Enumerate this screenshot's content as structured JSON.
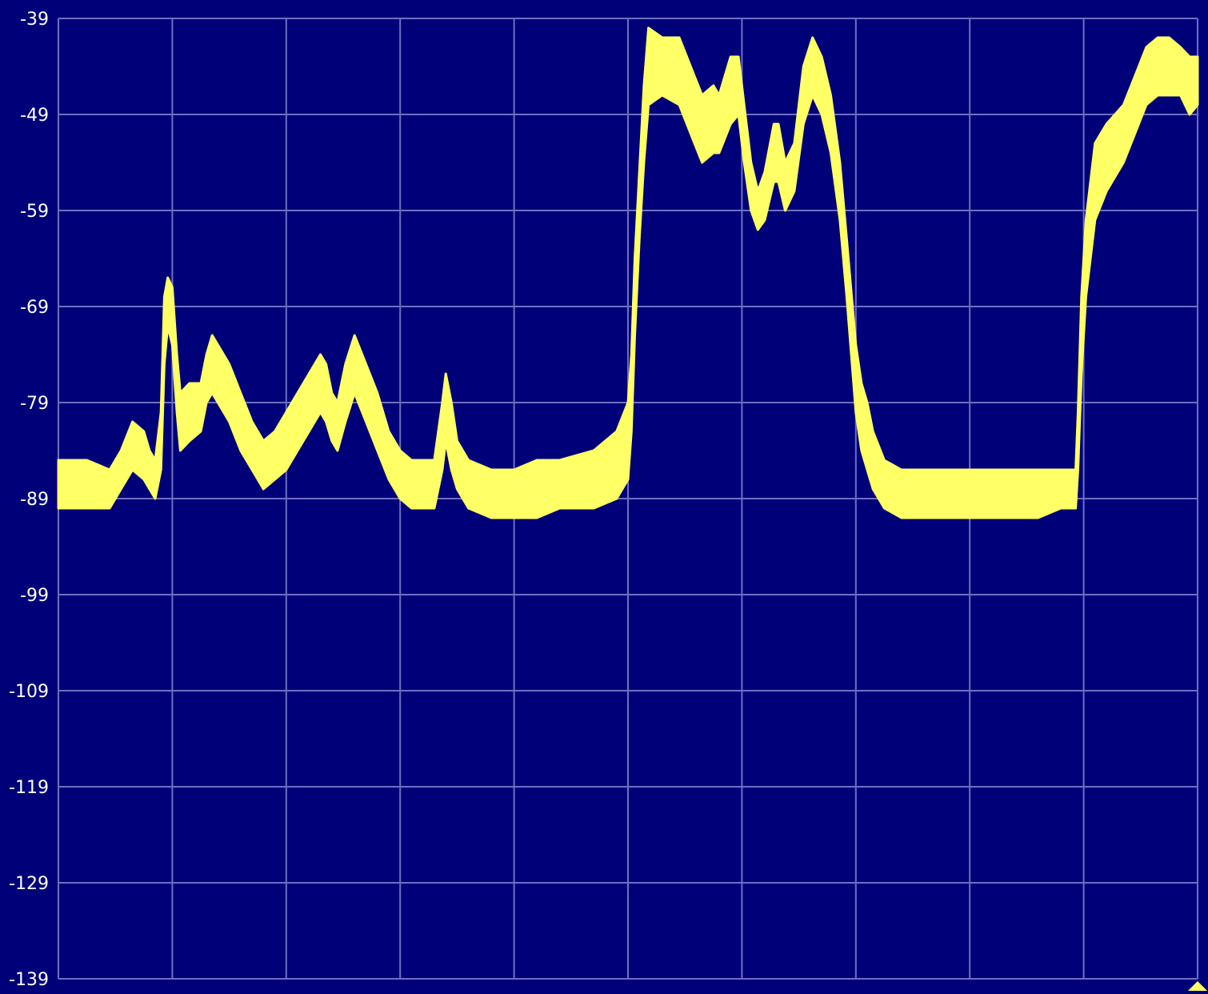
{
  "colors": {
    "background": "#000078",
    "grid": "#6f6fc4",
    "trace": "#ffff66",
    "label": "#ffffff"
  },
  "chart_data": {
    "type": "area",
    "title": "",
    "xlabel": "",
    "ylabel": "",
    "ylim": [
      -139,
      -39
    ],
    "yticks": [
      -39,
      -49,
      -59,
      -69,
      -79,
      -89,
      -99,
      -109,
      -119,
      -129,
      -139
    ],
    "x_divisions": 10,
    "xlim": [
      0,
      1
    ],
    "grid": true,
    "marker": "bottom-right-triangle",
    "series": [
      {
        "upper": [
          [
            0.0,
            -85
          ],
          [
            0.025,
            -85
          ],
          [
            0.045,
            -86
          ],
          [
            0.055,
            -84
          ],
          [
            0.065,
            -81
          ],
          [
            0.075,
            -82
          ],
          [
            0.08,
            -84
          ],
          [
            0.085,
            -85
          ],
          [
            0.09,
            -80
          ],
          [
            0.093,
            -68
          ],
          [
            0.096,
            -66
          ],
          [
            0.1,
            -67
          ],
          [
            0.104,
            -74
          ],
          [
            0.107,
            -78
          ],
          [
            0.115,
            -77
          ],
          [
            0.125,
            -77
          ],
          [
            0.13,
            -74
          ],
          [
            0.135,
            -72
          ],
          [
            0.14,
            -73
          ],
          [
            0.15,
            -75
          ],
          [
            0.16,
            -78
          ],
          [
            0.17,
            -81
          ],
          [
            0.18,
            -83
          ],
          [
            0.19,
            -82
          ],
          [
            0.2,
            -80
          ],
          [
            0.21,
            -78
          ],
          [
            0.22,
            -76
          ],
          [
            0.23,
            -74
          ],
          [
            0.235,
            -75
          ],
          [
            0.24,
            -78
          ],
          [
            0.245,
            -79
          ],
          [
            0.252,
            -75
          ],
          [
            0.26,
            -72
          ],
          [
            0.27,
            -75
          ],
          [
            0.28,
            -78
          ],
          [
            0.29,
            -82
          ],
          [
            0.3,
            -84
          ],
          [
            0.31,
            -85
          ],
          [
            0.32,
            -85
          ],
          [
            0.33,
            -85
          ],
          [
            0.337,
            -79
          ],
          [
            0.34,
            -76
          ],
          [
            0.345,
            -79
          ],
          [
            0.35,
            -83
          ],
          [
            0.36,
            -85
          ],
          [
            0.38,
            -86
          ],
          [
            0.4,
            -86
          ],
          [
            0.42,
            -85
          ],
          [
            0.44,
            -85
          ],
          [
            0.47,
            -84
          ],
          [
            0.49,
            -82
          ],
          [
            0.5,
            -79
          ],
          [
            0.503,
            -74
          ],
          [
            0.506,
            -64
          ],
          [
            0.51,
            -55
          ],
          [
            0.514,
            -46
          ],
          [
            0.518,
            -40
          ],
          [
            0.53,
            -41
          ],
          [
            0.545,
            -41
          ],
          [
            0.555,
            -44
          ],
          [
            0.565,
            -47
          ],
          [
            0.575,
            -46
          ],
          [
            0.58,
            -47
          ],
          [
            0.59,
            -43
          ],
          [
            0.597,
            -43
          ],
          [
            0.602,
            -48
          ],
          [
            0.608,
            -54
          ],
          [
            0.614,
            -57
          ],
          [
            0.62,
            -55
          ],
          [
            0.628,
            -50
          ],
          [
            0.632,
            -50
          ],
          [
            0.638,
            -54
          ],
          [
            0.646,
            -52
          ],
          [
            0.654,
            -44
          ],
          [
            0.662,
            -41
          ],
          [
            0.67,
            -43
          ],
          [
            0.678,
            -47
          ],
          [
            0.686,
            -54
          ],
          [
            0.692,
            -62
          ],
          [
            0.7,
            -73
          ],
          [
            0.705,
            -77
          ],
          [
            0.71,
            -79
          ],
          [
            0.715,
            -82
          ],
          [
            0.725,
            -85
          ],
          [
            0.74,
            -86
          ],
          [
            0.76,
            -86
          ],
          [
            0.78,
            -86
          ],
          [
            0.8,
            -86
          ],
          [
            0.82,
            -86
          ],
          [
            0.84,
            -86
          ],
          [
            0.86,
            -86
          ],
          [
            0.88,
            -86
          ],
          [
            0.893,
            -86
          ],
          [
            0.895,
            -80
          ],
          [
            0.898,
            -68
          ],
          [
            0.902,
            -60
          ],
          [
            0.91,
            -52
          ],
          [
            0.92,
            -50
          ],
          [
            0.935,
            -48
          ],
          [
            0.945,
            -45
          ],
          [
            0.955,
            -42
          ],
          [
            0.965,
            -41
          ],
          [
            0.975,
            -41
          ],
          [
            0.985,
            -42
          ],
          [
            0.993,
            -43
          ],
          [
            1.0,
            -43
          ]
        ],
        "lower": [
          [
            0.0,
            -90
          ],
          [
            0.025,
            -90
          ],
          [
            0.045,
            -90
          ],
          [
            0.055,
            -88
          ],
          [
            0.065,
            -86
          ],
          [
            0.075,
            -87
          ],
          [
            0.08,
            -88
          ],
          [
            0.085,
            -89
          ],
          [
            0.09,
            -86
          ],
          [
            0.093,
            -75
          ],
          [
            0.096,
            -71
          ],
          [
            0.1,
            -73
          ],
          [
            0.104,
            -80
          ],
          [
            0.107,
            -84
          ],
          [
            0.115,
            -83
          ],
          [
            0.125,
            -82
          ],
          [
            0.13,
            -79
          ],
          [
            0.135,
            -78
          ],
          [
            0.14,
            -79
          ],
          [
            0.15,
            -81
          ],
          [
            0.16,
            -84
          ],
          [
            0.17,
            -86
          ],
          [
            0.18,
            -88
          ],
          [
            0.19,
            -87
          ],
          [
            0.2,
            -86
          ],
          [
            0.21,
            -84
          ],
          [
            0.22,
            -82
          ],
          [
            0.23,
            -80
          ],
          [
            0.235,
            -81
          ],
          [
            0.24,
            -83
          ],
          [
            0.245,
            -84
          ],
          [
            0.252,
            -81
          ],
          [
            0.26,
            -78
          ],
          [
            0.27,
            -81
          ],
          [
            0.28,
            -84
          ],
          [
            0.29,
            -87
          ],
          [
            0.3,
            -89
          ],
          [
            0.31,
            -90
          ],
          [
            0.32,
            -90
          ],
          [
            0.33,
            -90
          ],
          [
            0.337,
            -86
          ],
          [
            0.34,
            -83
          ],
          [
            0.345,
            -86
          ],
          [
            0.35,
            -88
          ],
          [
            0.36,
            -90
          ],
          [
            0.38,
            -91
          ],
          [
            0.4,
            -91
          ],
          [
            0.42,
            -91
          ],
          [
            0.44,
            -90
          ],
          [
            0.47,
            -90
          ],
          [
            0.49,
            -89
          ],
          [
            0.5,
            -87
          ],
          [
            0.503,
            -82
          ],
          [
            0.506,
            -72
          ],
          [
            0.51,
            -62
          ],
          [
            0.514,
            -54
          ],
          [
            0.518,
            -48
          ],
          [
            0.53,
            -47
          ],
          [
            0.545,
            -48
          ],
          [
            0.555,
            -51
          ],
          [
            0.565,
            -54
          ],
          [
            0.575,
            -53
          ],
          [
            0.58,
            -53
          ],
          [
            0.59,
            -50
          ],
          [
            0.597,
            -49
          ],
          [
            0.602,
            -54
          ],
          [
            0.608,
            -59
          ],
          [
            0.614,
            -61
          ],
          [
            0.62,
            -60
          ],
          [
            0.628,
            -56
          ],
          [
            0.632,
            -56
          ],
          [
            0.638,
            -59
          ],
          [
            0.646,
            -57
          ],
          [
            0.654,
            -50
          ],
          [
            0.662,
            -47
          ],
          [
            0.67,
            -49
          ],
          [
            0.678,
            -53
          ],
          [
            0.686,
            -60
          ],
          [
            0.692,
            -68
          ],
          [
            0.7,
            -80
          ],
          [
            0.705,
            -84
          ],
          [
            0.71,
            -86
          ],
          [
            0.715,
            -88
          ],
          [
            0.725,
            -90
          ],
          [
            0.74,
            -91
          ],
          [
            0.76,
            -91
          ],
          [
            0.78,
            -91
          ],
          [
            0.8,
            -91
          ],
          [
            0.82,
            -91
          ],
          [
            0.84,
            -91
          ],
          [
            0.86,
            -91
          ],
          [
            0.88,
            -90
          ],
          [
            0.893,
            -90
          ],
          [
            0.895,
            -86
          ],
          [
            0.898,
            -76
          ],
          [
            0.902,
            -68
          ],
          [
            0.91,
            -60
          ],
          [
            0.92,
            -57
          ],
          [
            0.935,
            -54
          ],
          [
            0.945,
            -51
          ],
          [
            0.955,
            -48
          ],
          [
            0.965,
            -47
          ],
          [
            0.975,
            -47
          ],
          [
            0.985,
            -47
          ],
          [
            0.993,
            -49
          ],
          [
            1.0,
            -48
          ]
        ]
      }
    ]
  }
}
